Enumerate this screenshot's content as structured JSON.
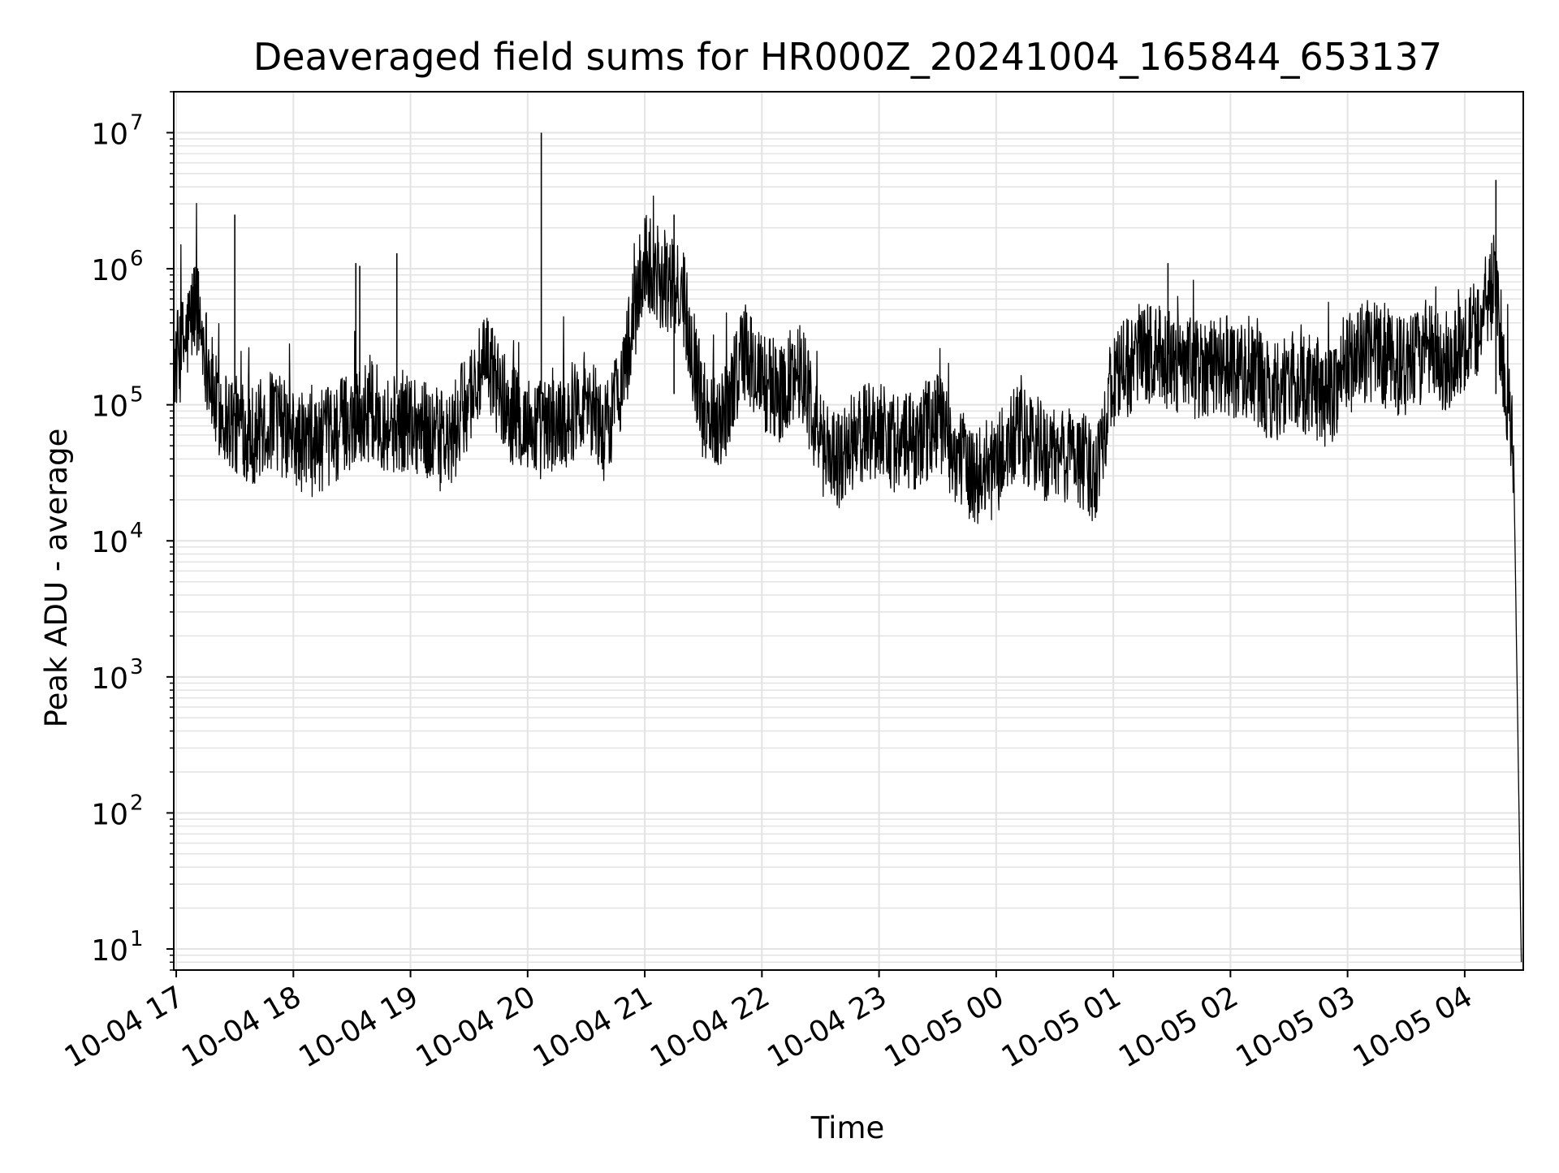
{
  "chart_data": {
    "type": "line",
    "title": "Deaveraged field sums for HR000Z_20241004_165844_653137",
    "xlabel": "Time",
    "ylabel": "Peak ADU - average",
    "yscale": "log",
    "grid": true,
    "line_color": "#000000",
    "grid_color": "#e3e3e3",
    "xlim": [
      "2024-10-04 16:58:44",
      "2024-10-05 04:30:00"
    ],
    "ylim": [
      7,
      20000000
    ],
    "x_ticks": [
      {
        "t": "2024-10-04 17:00",
        "label": "10-04 17"
      },
      {
        "t": "2024-10-04 18:00",
        "label": "10-04 18"
      },
      {
        "t": "2024-10-04 19:00",
        "label": "10-04 19"
      },
      {
        "t": "2024-10-04 20:00",
        "label": "10-04 20"
      },
      {
        "t": "2024-10-04 21:00",
        "label": "10-04 21"
      },
      {
        "t": "2024-10-04 22:00",
        "label": "10-04 22"
      },
      {
        "t": "2024-10-04 23:00",
        "label": "10-04 23"
      },
      {
        "t": "2024-10-05 00:00",
        "label": "10-05 00"
      },
      {
        "t": "2024-10-05 01:00",
        "label": "10-05 01"
      },
      {
        "t": "2024-10-05 02:00",
        "label": "10-05 02"
      },
      {
        "t": "2024-10-05 03:00",
        "label": "10-05 03"
      },
      {
        "t": "2024-10-05 04:00",
        "label": "10-05 04"
      }
    ],
    "y_ticks": [
      {
        "value": 10,
        "base": "10",
        "exp": "1"
      },
      {
        "value": 100,
        "base": "10",
        "exp": "2"
      },
      {
        "value": 1000,
        "base": "10",
        "exp": "3"
      },
      {
        "value": 10000,
        "base": "10",
        "exp": "4"
      },
      {
        "value": 100000,
        "base": "10",
        "exp": "5"
      },
      {
        "value": 1000000,
        "base": "10",
        "exp": "6"
      },
      {
        "value": 10000000,
        "base": "10",
        "exp": "7"
      }
    ],
    "series": [
      {
        "x": [
          "2024-10-04 16:59",
          "2024-10-04 17:05",
          "2024-10-04 17:10",
          "2024-10-04 17:12",
          "2024-10-04 17:15",
          "2024-10-04 17:20",
          "2024-10-04 17:30",
          "2024-10-04 17:40",
          "2024-10-04 17:50",
          "2024-10-04 18:00",
          "2024-10-04 18:10",
          "2024-10-04 18:20",
          "2024-10-04 18:30",
          "2024-10-04 18:40",
          "2024-10-04 18:50",
          "2024-10-04 19:00",
          "2024-10-04 19:10",
          "2024-10-04 19:20",
          "2024-10-04 19:30",
          "2024-10-04 19:40",
          "2024-10-04 19:50",
          "2024-10-04 20:00",
          "2024-10-04 20:10",
          "2024-10-04 20:20",
          "2024-10-04 20:30",
          "2024-10-04 20:40",
          "2024-10-04 20:50",
          "2024-10-04 21:00",
          "2024-10-04 21:10",
          "2024-10-04 21:20",
          "2024-10-04 21:30",
          "2024-10-04 21:40",
          "2024-10-04 21:50",
          "2024-10-04 22:00",
          "2024-10-04 22:10",
          "2024-10-04 22:20",
          "2024-10-04 22:30",
          "2024-10-04 22:40",
          "2024-10-04 22:50",
          "2024-10-04 23:00",
          "2024-10-04 23:10",
          "2024-10-04 23:20",
          "2024-10-04 23:30",
          "2024-10-04 23:40",
          "2024-10-04 23:50",
          "2024-10-05 00:00",
          "2024-10-05 00:10",
          "2024-10-05 00:20",
          "2024-10-05 00:30",
          "2024-10-05 00:40",
          "2024-10-05 00:50",
          "2024-10-05 01:00",
          "2024-10-05 01:10",
          "2024-10-05 01:20",
          "2024-10-05 01:30",
          "2024-10-05 01:40",
          "2024-10-05 01:50",
          "2024-10-05 02:00",
          "2024-10-05 02:10",
          "2024-10-05 02:20",
          "2024-10-05 02:30",
          "2024-10-05 02:40",
          "2024-10-05 02:50",
          "2024-10-05 03:00",
          "2024-10-05 03:10",
          "2024-10-05 03:20",
          "2024-10-05 03:30",
          "2024-10-05 03:40",
          "2024-10-05 03:50",
          "2024-10-05 04:00",
          "2024-10-05 04:08",
          "2024-10-05 04:15",
          "2024-10-05 04:20",
          "2024-10-05 04:25",
          "2024-10-05 04:29"
        ],
        "y": [
          200000,
          300000,
          600000,
          400000,
          250000,
          100000,
          70000,
          60000,
          80000,
          55000,
          50000,
          60000,
          80000,
          90000,
          70000,
          80000,
          60000,
          50000,
          120000,
          200000,
          90000,
          70000,
          65000,
          80000,
          120000,
          60000,
          200000,
          1200000,
          800000,
          600000,
          90000,
          80000,
          250000,
          150000,
          120000,
          200000,
          50000,
          40000,
          60000,
          70000,
          50000,
          55000,
          80000,
          40000,
          30000,
          35000,
          60000,
          50000,
          40000,
          45000,
          30000,
          150000,
          200000,
          250000,
          200000,
          180000,
          200000,
          190000,
          180000,
          120000,
          150000,
          140000,
          110000,
          200000,
          250000,
          220000,
          180000,
          250000,
          200000,
          300000,
          400000,
          800000,
          200000,
          50000,
          8
        ]
      }
    ],
    "spikes": [
      {
        "x": "2024-10-04 17:30",
        "y": 2500000
      },
      {
        "x": "2024-10-04 18:32",
        "y": 1100000
      },
      {
        "x": "2024-10-04 18:34",
        "y": 1050000
      },
      {
        "x": "2024-10-04 18:53",
        "y": 1300000
      },
      {
        "x": "2024-10-04 20:07",
        "y": 10000000
      },
      {
        "x": "2024-10-04 21:15",
        "y": 2500000
      },
      {
        "x": "2024-10-05 01:28",
        "y": 1100000
      },
      {
        "x": "2024-10-05 04:16",
        "y": 4500000
      }
    ]
  }
}
